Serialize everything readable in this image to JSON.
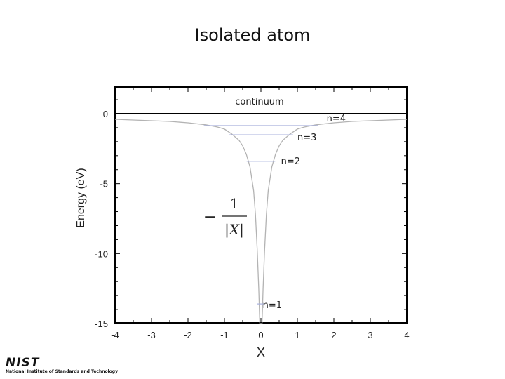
{
  "title": "Isolated atom",
  "chart_data": {
    "type": "line",
    "title": "",
    "xlabel": "X",
    "ylabel": "Energy (eV)",
    "xlim": [
      -4,
      4
    ],
    "ylim": [
      -15,
      2
    ],
    "x_ticks": [
      -4,
      -3,
      -2,
      -1,
      0,
      1,
      2,
      3,
      4
    ],
    "y_ticks": [
      0,
      -5,
      -10,
      -15
    ],
    "grid": false,
    "potential_formula": {
      "sign": "−",
      "numerator": "1",
      "denominator": "|X|"
    },
    "continuum": {
      "label": "continuum",
      "energy": 0
    },
    "levels": [
      {
        "label": "n=1",
        "energy": -13.6
      },
      {
        "label": "n=2",
        "energy": -3.4
      },
      {
        "label": "n=3",
        "energy": -1.51
      },
      {
        "label": "n=4",
        "energy": -0.85
      }
    ],
    "series": [
      {
        "x": [
          -4,
          -3.5,
          -3,
          -2.5,
          -2,
          -1.5,
          -1.2,
          -1,
          -0.8,
          -0.6,
          -0.5,
          -0.4,
          -0.3,
          -0.2,
          -0.15,
          -0.1,
          -0.06,
          -0.03,
          0.03,
          0.06,
          0.1,
          0.15,
          0.2,
          0.3,
          0.4,
          0.5,
          0.6,
          0.8,
          1,
          1.2,
          1.5,
          2,
          2.5,
          3,
          3.5,
          4
        ],
        "y": [
          -0.4,
          -0.45,
          -0.5,
          -0.55,
          -0.65,
          -0.8,
          -0.95,
          -1.1,
          -1.45,
          -1.9,
          -2.3,
          -2.9,
          -3.8,
          -5.5,
          -7.2,
          -9.8,
          -12.5,
          -15,
          -15,
          -12.5,
          -9.8,
          -7.2,
          -5.5,
          -3.8,
          -2.9,
          -2.3,
          -1.9,
          -1.45,
          -1.1,
          -0.95,
          -0.8,
          -0.65,
          -0.55,
          -0.5,
          -0.45,
          -0.4
        ]
      }
    ],
    "colors": {
      "curve": "#b3b3b3",
      "level": "#a9b1dc",
      "axis": "#000000"
    }
  },
  "logo": {
    "wordmark": "NIST",
    "subtitle": "National Institute of Standards and Technology"
  }
}
